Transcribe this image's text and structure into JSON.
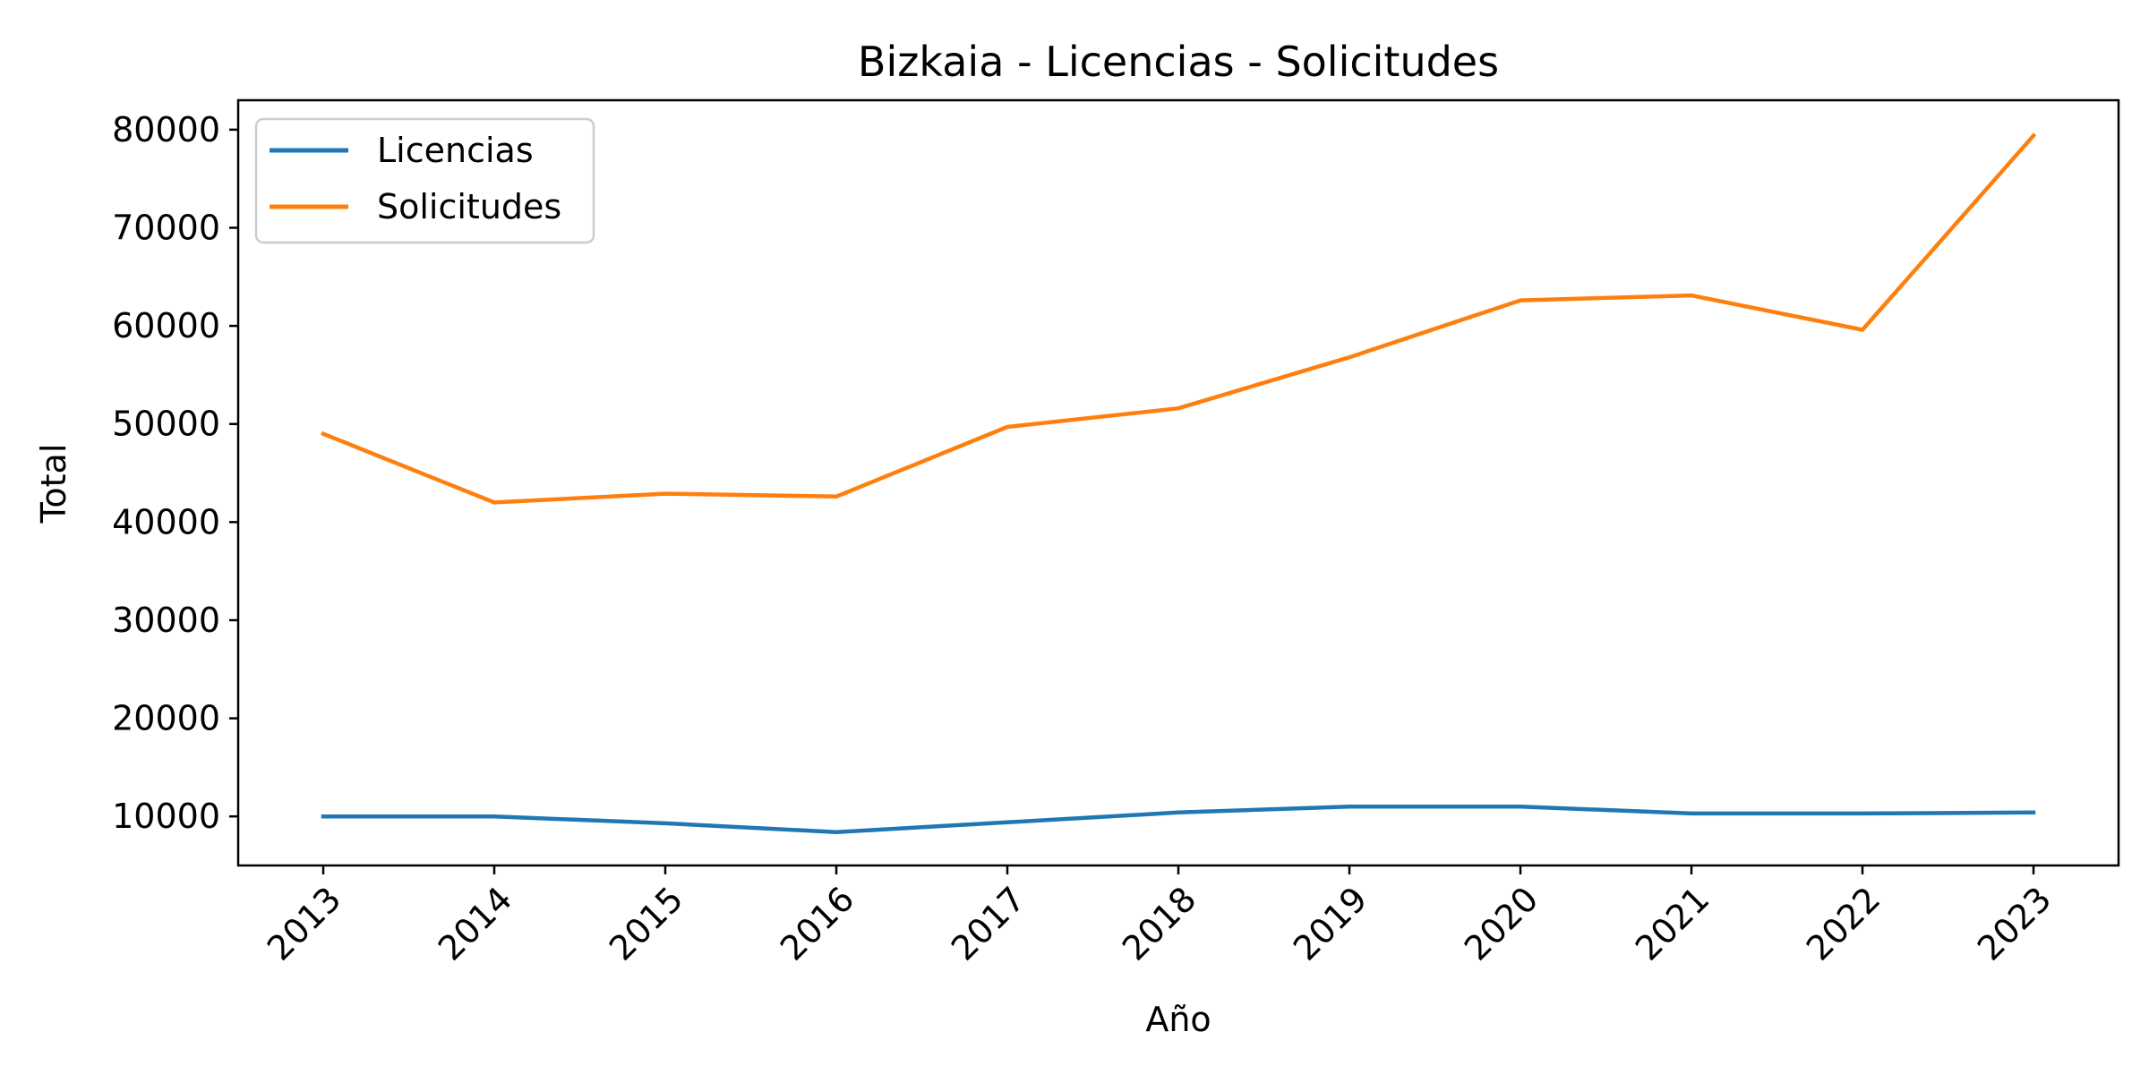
{
  "chart_data": {
    "type": "line",
    "title": "Bizkaia - Licencias - Solicitudes",
    "xlabel": "Año",
    "ylabel": "Total",
    "categories": [
      "2013",
      "2014",
      "2015",
      "2016",
      "2017",
      "2018",
      "2019",
      "2020",
      "2021",
      "2022",
      "2023"
    ],
    "yticks": [
      "10000",
      "20000",
      "30000",
      "40000",
      "50000",
      "60000",
      "70000",
      "80000"
    ],
    "ylim": [
      5000,
      83000
    ],
    "grid": false,
    "legend_position": "top-left",
    "series": [
      {
        "name": "Licencias",
        "color": "#1f77b4",
        "values": [
          10000,
          10000,
          9300,
          8400,
          9400,
          10400,
          11000,
          11000,
          10300,
          10300,
          10400
        ]
      },
      {
        "name": "Solicitudes",
        "color": "#ff7f0e",
        "values": [
          49000,
          42000,
          42900,
          42600,
          49700,
          51600,
          56800,
          62600,
          63100,
          59600,
          79400
        ]
      }
    ]
  }
}
